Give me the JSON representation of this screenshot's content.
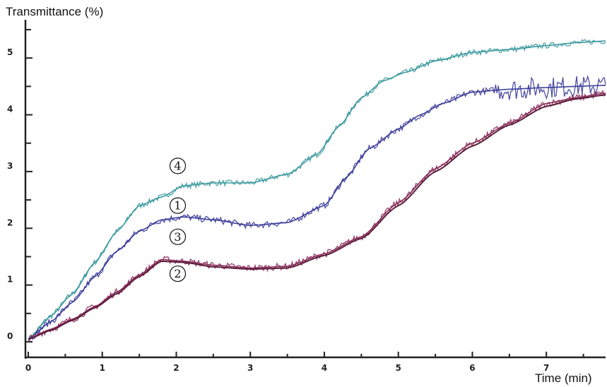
{
  "chart_data": {
    "type": "line",
    "title": "",
    "ylabel": "Transmittance (%)",
    "xlabel": "Time (min)",
    "xlim": [
      0,
      7.8
    ],
    "ylim": [
      0,
      5.5
    ],
    "x_ticks": [
      "0",
      "1",
      "2",
      "3",
      "4",
      "5",
      "6",
      "7"
    ],
    "y_ticks": [
      "0",
      "1",
      "2",
      "3",
      "4",
      "5"
    ],
    "grid": false,
    "line_colors": {
      "1": "#3d3d9a",
      "2": "#8a2b5a",
      "3": "#5a1e3a",
      "4": "#3e9aa0"
    },
    "series": [
      {
        "name": "4",
        "x": [
          0,
          0.3,
          0.6,
          0.9,
          1.2,
          1.5,
          1.8,
          2.1,
          2.5,
          3.0,
          3.5,
          3.9,
          4.2,
          4.5,
          4.8,
          5.1,
          5.5,
          6.0,
          6.5,
          7.0,
          7.4,
          7.8
        ],
        "values": [
          0.05,
          0.45,
          0.85,
          1.4,
          1.95,
          2.4,
          2.55,
          2.75,
          2.8,
          2.8,
          2.95,
          3.3,
          3.8,
          4.3,
          4.6,
          4.75,
          4.95,
          5.1,
          5.15,
          5.22,
          5.27,
          5.3
        ]
      },
      {
        "name": "1",
        "x": [
          0,
          0.3,
          0.6,
          0.9,
          1.2,
          1.5,
          1.8,
          2.1,
          2.5,
          3.0,
          3.5,
          4.0,
          4.3,
          4.6,
          5.0,
          5.3,
          5.6,
          6.0,
          6.5,
          7.0,
          7.4,
          7.8
        ],
        "values": [
          0.05,
          0.35,
          0.7,
          1.15,
          1.6,
          1.95,
          2.15,
          2.2,
          2.15,
          2.05,
          2.1,
          2.4,
          2.9,
          3.4,
          3.75,
          4.0,
          4.2,
          4.4,
          4.45,
          4.48,
          4.5,
          4.52
        ]
      },
      {
        "name": "2",
        "x": [
          0,
          0.3,
          0.6,
          0.9,
          1.2,
          1.5,
          1.8,
          2.1,
          2.5,
          3.0,
          3.5,
          4.0,
          4.5,
          5.0,
          5.5,
          6.0,
          6.5,
          7.0,
          7.4,
          7.8
        ],
        "values": [
          0.05,
          0.22,
          0.4,
          0.62,
          0.88,
          1.18,
          1.45,
          1.42,
          1.35,
          1.3,
          1.33,
          1.55,
          1.85,
          2.45,
          3.05,
          3.5,
          3.85,
          4.2,
          4.3,
          4.38
        ]
      },
      {
        "name": "3",
        "x": [
          0,
          0.3,
          0.6,
          0.9,
          1.2,
          1.5,
          1.8,
          2.1,
          2.5,
          3.0,
          3.5,
          4.0,
          4.5,
          5.0,
          5.5,
          6.0,
          6.5,
          7.0,
          7.4,
          7.8
        ],
        "values": [
          0.05,
          0.2,
          0.38,
          0.6,
          0.85,
          1.15,
          1.42,
          1.4,
          1.32,
          1.28,
          1.3,
          1.52,
          1.82,
          2.4,
          3.0,
          3.45,
          3.82,
          4.15,
          4.28,
          4.35
        ]
      }
    ],
    "annotations": [
      {
        "text": "4",
        "x": 2.0,
        "y": 3.1
      },
      {
        "text": "1",
        "x": 2.0,
        "y": 2.4
      },
      {
        "text": "3",
        "x": 2.0,
        "y": 1.85
      },
      {
        "text": "2",
        "x": 2.0,
        "y": 1.2
      }
    ]
  }
}
